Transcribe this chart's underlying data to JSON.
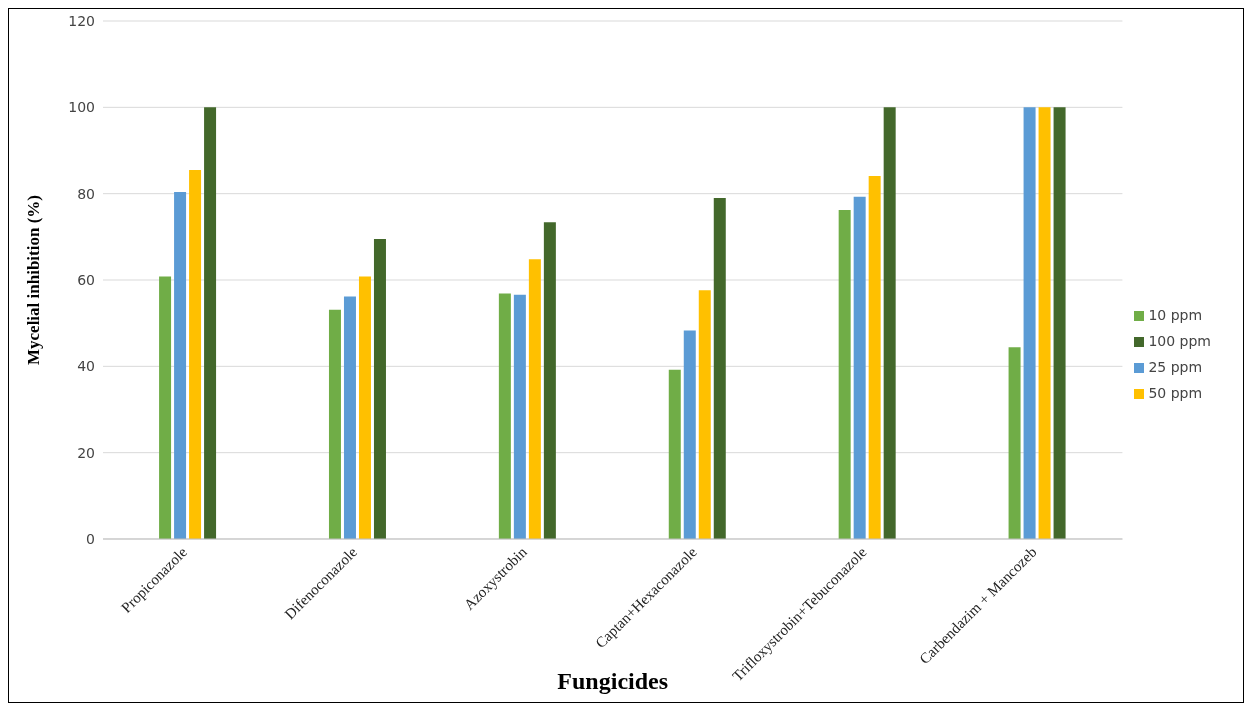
{
  "chart_data": {
    "type": "bar",
    "xlabel": "Fungicides",
    "ylabel": "Mycelial inhibition  (%)",
    "categories": [
      "Propiconazole",
      "Difenoconazole",
      "Azoxystrobin",
      "Captan+Hexaconazole",
      "Trifloxystrobin+Tebuconazole",
      "Carbendazim + Mancozeb"
    ],
    "series": [
      {
        "name": "10 ppm",
        "color": "#70ad47",
        "values": [
          60.8,
          53.1,
          56.9,
          39.2,
          76.2,
          44.4
        ]
      },
      {
        "name": "25 ppm",
        "color": "#5b9bd5",
        "values": [
          80.4,
          56.2,
          56.6,
          48.3,
          79.3,
          100
        ]
      },
      {
        "name": "50 ppm",
        "color": "#ffc000",
        "values": [
          85.5,
          60.8,
          64.8,
          57.6,
          84.1,
          100
        ]
      },
      {
        "name": "100 ppm",
        "color": "#43682b",
        "values": [
          100,
          69.5,
          73.4,
          79.0,
          100,
          100
        ]
      }
    ],
    "ylim": [
      0,
      120
    ],
    "yticks": [
      0,
      20,
      40,
      60,
      80,
      100,
      120
    ],
    "grid": "y",
    "legend": "right"
  }
}
